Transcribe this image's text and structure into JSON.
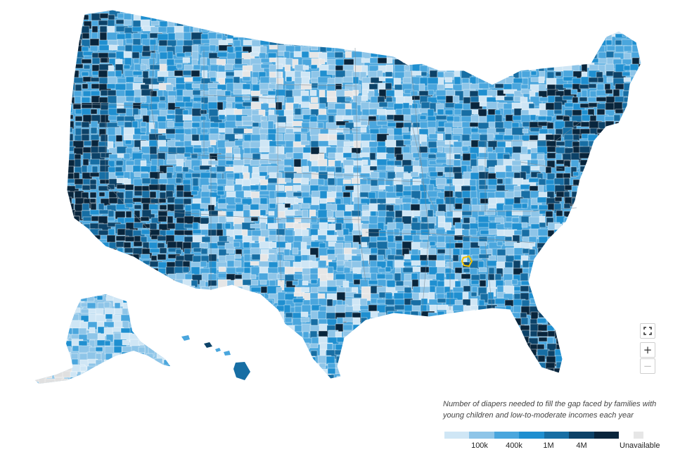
{
  "map": {
    "palette": [
      "#cfe6f5",
      "#8ec5e8",
      "#4aa6dd",
      "#1f8fd0",
      "#176ea4",
      "#0c4268",
      "#08253c"
    ],
    "unavailable_color": "#e6e6e6",
    "highlight_color": "#f2c200"
  },
  "controls": {
    "fullscreen_icon": "fullscreen-icon",
    "zoom_in_label": "+",
    "zoom_out_label": "−"
  },
  "legend": {
    "title": "Number of diapers needed to fill the gap faced by families with young children and low-to-moderate incomes each year",
    "ticks": [
      "100k",
      "400k",
      "1M",
      "4M"
    ],
    "unavailable_label": "Unavailable"
  }
}
